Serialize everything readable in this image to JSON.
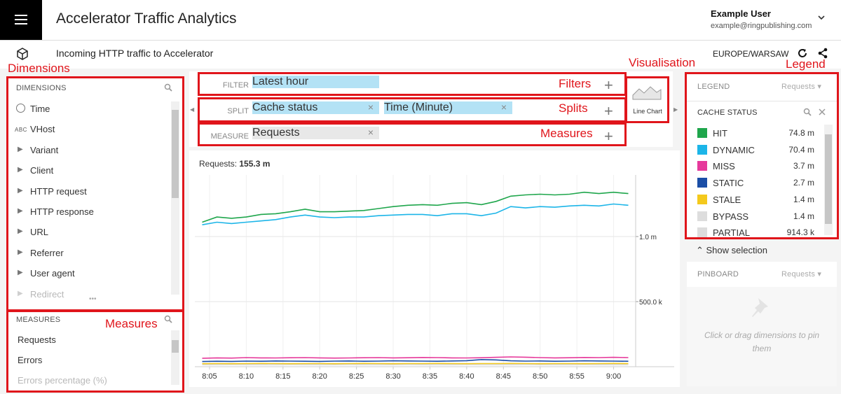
{
  "header": {
    "title": "Accelerator Traffic Analytics",
    "user_name": "Example User",
    "user_email": "example@ringpublishing.com"
  },
  "subheader": {
    "title": "Incoming HTTP traffic to Accelerator",
    "timezone": "EUROPE/WARSAW"
  },
  "annotations": {
    "dimensions": "Dimensions",
    "measures_panel": "Measures",
    "filters": "Filters",
    "splits": "Splits",
    "measures_bar": "Measures",
    "visualisation": "Visualisation",
    "legend": "Legend"
  },
  "dimensions_panel": {
    "title": "DIMENSIONS",
    "items": [
      {
        "label": "Time"
      },
      {
        "label": "VHost",
        "badge": "ABC"
      },
      {
        "label": "Variant",
        "expandable": true
      },
      {
        "label": "Client",
        "expandable": true
      },
      {
        "label": "HTTP request",
        "expandable": true
      },
      {
        "label": "HTTP response",
        "expandable": true
      },
      {
        "label": "URL",
        "expandable": true
      },
      {
        "label": "Referrer",
        "expandable": true
      },
      {
        "label": "User agent",
        "expandable": true
      },
      {
        "label": "Redirect",
        "expandable": true
      }
    ]
  },
  "measures_panel": {
    "title": "MEASURES",
    "items": [
      "Requests",
      "Errors",
      "Errors percentage (%)"
    ]
  },
  "filter_bar": {
    "filter": {
      "label": "FILTER",
      "tiles": [
        "Latest hour"
      ]
    },
    "split": {
      "label": "SPLIT",
      "tiles": [
        "Cache status",
        "Time (Minute)"
      ]
    },
    "measure": {
      "label": "MEASURE",
      "tiles": [
        "Requests"
      ]
    }
  },
  "visualisation": {
    "label": "Line Chart"
  },
  "summary": {
    "label": "Requests:",
    "value": "155.3 m"
  },
  "chart_data": {
    "type": "line",
    "x": [
      "8:04",
      "8:06",
      "8:08",
      "8:10",
      "8:12",
      "8:14",
      "8:16",
      "8:18",
      "8:20",
      "8:22",
      "8:24",
      "8:26",
      "8:28",
      "8:30",
      "8:32",
      "8:34",
      "8:36",
      "8:38",
      "8:40",
      "8:42",
      "8:44",
      "8:46",
      "8:48",
      "8:50",
      "8:52",
      "8:54",
      "8:56",
      "8:58",
      "9:00",
      "9:02"
    ],
    "xlim": [
      "8:03",
      "9:03"
    ],
    "xticks": [
      "8:05",
      "8:10",
      "8:15",
      "8:20",
      "8:25",
      "8:30",
      "8:35",
      "8:40",
      "8:45",
      "8:50",
      "8:55",
      "9:00"
    ],
    "ylim": [
      0,
      1473000
    ],
    "yticks": [
      {
        "value": 500000,
        "label": "500.0 k"
      },
      {
        "value": 1000000,
        "label": "1.0 m"
      }
    ],
    "grid": true,
    "series": [
      {
        "name": "HIT",
        "color": "#1fa64c",
        "total": "74.8 m",
        "values": [
          1110000,
          1150000,
          1140000,
          1150000,
          1170000,
          1175000,
          1190000,
          1210000,
          1190000,
          1190000,
          1195000,
          1200000,
          1215000,
          1230000,
          1240000,
          1245000,
          1240000,
          1255000,
          1260000,
          1245000,
          1270000,
          1310000,
          1320000,
          1325000,
          1320000,
          1325000,
          1340000,
          1330000,
          1340000,
          1330000
        ]
      },
      {
        "name": "DYNAMIC",
        "color": "#1cb5e8",
        "total": "70.4 m",
        "values": [
          1090000,
          1110000,
          1100000,
          1110000,
          1120000,
          1130000,
          1150000,
          1165000,
          1150000,
          1145000,
          1150000,
          1150000,
          1160000,
          1165000,
          1170000,
          1170000,
          1160000,
          1175000,
          1175000,
          1160000,
          1180000,
          1230000,
          1220000,
          1230000,
          1225000,
          1235000,
          1240000,
          1235000,
          1250000,
          1240000
        ]
      },
      {
        "name": "MISS",
        "color": "#e6399b",
        "total": "3.7 m",
        "values": [
          65000,
          68000,
          66000,
          70000,
          68000,
          67000,
          69000,
          70000,
          68000,
          66000,
          67000,
          69000,
          70000,
          68000,
          69000,
          71000,
          70000,
          68000,
          67000,
          69000,
          72000,
          75000,
          73000,
          70000,
          68000,
          69000,
          71000,
          70000,
          72000,
          70000
        ]
      },
      {
        "name": "STATIC",
        "color": "#1b4ea6",
        "total": "2.7 m",
        "values": [
          40000,
          42000,
          41000,
          43000,
          42000,
          44000,
          43000,
          42000,
          41000,
          43000,
          44000,
          42000,
          43000,
          45000,
          44000,
          43000,
          42000,
          44000,
          46000,
          55000,
          52000,
          45000,
          43000,
          44000,
          42000,
          43000,
          45000,
          44000,
          43000,
          42000
        ]
      },
      {
        "name": "STALE",
        "color": "#f4c91c",
        "total": "1.4 m",
        "values": [
          23000,
          24000,
          23000,
          24000,
          25000,
          24000,
          23000,
          24000,
          24000,
          23000,
          24000,
          25000,
          24000,
          23000,
          24000,
          24000,
          25000,
          24000,
          23000,
          24000,
          24000,
          25000,
          24000,
          23000,
          24000,
          24000,
          23000,
          24000,
          25000,
          24000
        ]
      },
      {
        "name": "BYPASS",
        "color": "#dddddd",
        "total": "1.4 m",
        "values": [
          23000,
          23000,
          24000,
          23000,
          23000,
          24000,
          24000,
          23000,
          23000,
          24000,
          23000,
          23000,
          24000,
          24000,
          23000,
          23000,
          24000,
          23000,
          23000,
          24000,
          24000,
          23000,
          23000,
          24000,
          23000,
          23000,
          24000,
          23000,
          23000,
          24000
        ]
      },
      {
        "name": "PARTIAL",
        "color": "#dddddd",
        "total": "914.3 k",
        "values": [
          15000,
          15000,
          16000,
          15000,
          15000,
          15000,
          16000,
          15000,
          15000,
          15000,
          16000,
          15000,
          15000,
          15000,
          16000,
          15000,
          15000,
          15000,
          16000,
          15000,
          15000,
          15000,
          16000,
          15000,
          15000,
          15000,
          16000,
          15000,
          15000,
          15000
        ]
      }
    ]
  },
  "legend": {
    "title": "LEGEND",
    "measure": "Requests",
    "section": "CACHE STATUS",
    "show_selection": "Show selection"
  },
  "pinboard": {
    "title": "PINBOARD",
    "measure": "Requests",
    "hint": "Click or drag dimensions to pin them"
  }
}
